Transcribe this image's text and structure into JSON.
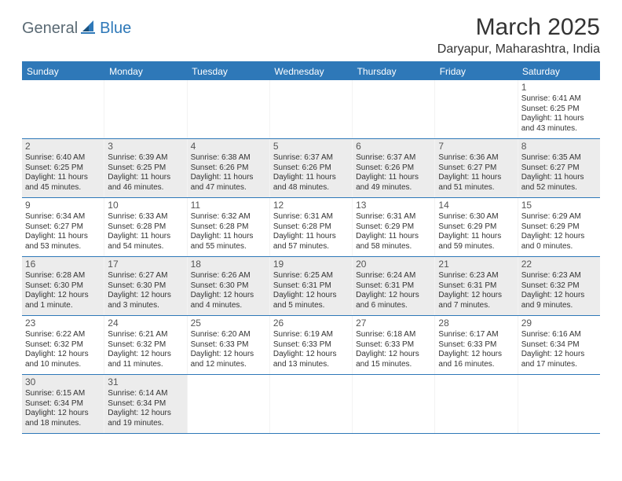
{
  "logo": {
    "text1": "General",
    "text2": "Blue"
  },
  "title": "March 2025",
  "location": "Daryapur, Maharashtra, India",
  "day_headers": [
    "Sunday",
    "Monday",
    "Tuesday",
    "Wednesday",
    "Thursday",
    "Friday",
    "Saturday"
  ],
  "colors": {
    "brand": "#2e78b8",
    "shade": "#ececec",
    "text": "#333333"
  },
  "weeks": [
    [
      {
        "day": "",
        "sunrise": "",
        "sunset": "",
        "daylight": ""
      },
      {
        "day": "",
        "sunrise": "",
        "sunset": "",
        "daylight": ""
      },
      {
        "day": "",
        "sunrise": "",
        "sunset": "",
        "daylight": ""
      },
      {
        "day": "",
        "sunrise": "",
        "sunset": "",
        "daylight": ""
      },
      {
        "day": "",
        "sunrise": "",
        "sunset": "",
        "daylight": ""
      },
      {
        "day": "",
        "sunrise": "",
        "sunset": "",
        "daylight": ""
      },
      {
        "day": "1",
        "sunrise": "Sunrise: 6:41 AM",
        "sunset": "Sunset: 6:25 PM",
        "daylight": "Daylight: 11 hours and 43 minutes."
      }
    ],
    [
      {
        "day": "2",
        "shade": true,
        "sunrise": "Sunrise: 6:40 AM",
        "sunset": "Sunset: 6:25 PM",
        "daylight": "Daylight: 11 hours and 45 minutes."
      },
      {
        "day": "3",
        "shade": true,
        "sunrise": "Sunrise: 6:39 AM",
        "sunset": "Sunset: 6:25 PM",
        "daylight": "Daylight: 11 hours and 46 minutes."
      },
      {
        "day": "4",
        "shade": true,
        "sunrise": "Sunrise: 6:38 AM",
        "sunset": "Sunset: 6:26 PM",
        "daylight": "Daylight: 11 hours and 47 minutes."
      },
      {
        "day": "5",
        "shade": true,
        "sunrise": "Sunrise: 6:37 AM",
        "sunset": "Sunset: 6:26 PM",
        "daylight": "Daylight: 11 hours and 48 minutes."
      },
      {
        "day": "6",
        "shade": true,
        "sunrise": "Sunrise: 6:37 AM",
        "sunset": "Sunset: 6:26 PM",
        "daylight": "Daylight: 11 hours and 49 minutes."
      },
      {
        "day": "7",
        "shade": true,
        "sunrise": "Sunrise: 6:36 AM",
        "sunset": "Sunset: 6:27 PM",
        "daylight": "Daylight: 11 hours and 51 minutes."
      },
      {
        "day": "8",
        "shade": true,
        "sunrise": "Sunrise: 6:35 AM",
        "sunset": "Sunset: 6:27 PM",
        "daylight": "Daylight: 11 hours and 52 minutes."
      }
    ],
    [
      {
        "day": "9",
        "sunrise": "Sunrise: 6:34 AM",
        "sunset": "Sunset: 6:27 PM",
        "daylight": "Daylight: 11 hours and 53 minutes."
      },
      {
        "day": "10",
        "sunrise": "Sunrise: 6:33 AM",
        "sunset": "Sunset: 6:28 PM",
        "daylight": "Daylight: 11 hours and 54 minutes."
      },
      {
        "day": "11",
        "sunrise": "Sunrise: 6:32 AM",
        "sunset": "Sunset: 6:28 PM",
        "daylight": "Daylight: 11 hours and 55 minutes."
      },
      {
        "day": "12",
        "sunrise": "Sunrise: 6:31 AM",
        "sunset": "Sunset: 6:28 PM",
        "daylight": "Daylight: 11 hours and 57 minutes."
      },
      {
        "day": "13",
        "sunrise": "Sunrise: 6:31 AM",
        "sunset": "Sunset: 6:29 PM",
        "daylight": "Daylight: 11 hours and 58 minutes."
      },
      {
        "day": "14",
        "sunrise": "Sunrise: 6:30 AM",
        "sunset": "Sunset: 6:29 PM",
        "daylight": "Daylight: 11 hours and 59 minutes."
      },
      {
        "day": "15",
        "sunrise": "Sunrise: 6:29 AM",
        "sunset": "Sunset: 6:29 PM",
        "daylight": "Daylight: 12 hours and 0 minutes."
      }
    ],
    [
      {
        "day": "16",
        "shade": true,
        "sunrise": "Sunrise: 6:28 AM",
        "sunset": "Sunset: 6:30 PM",
        "daylight": "Daylight: 12 hours and 1 minute."
      },
      {
        "day": "17",
        "shade": true,
        "sunrise": "Sunrise: 6:27 AM",
        "sunset": "Sunset: 6:30 PM",
        "daylight": "Daylight: 12 hours and 3 minutes."
      },
      {
        "day": "18",
        "shade": true,
        "sunrise": "Sunrise: 6:26 AM",
        "sunset": "Sunset: 6:30 PM",
        "daylight": "Daylight: 12 hours and 4 minutes."
      },
      {
        "day": "19",
        "shade": true,
        "sunrise": "Sunrise: 6:25 AM",
        "sunset": "Sunset: 6:31 PM",
        "daylight": "Daylight: 12 hours and 5 minutes."
      },
      {
        "day": "20",
        "shade": true,
        "sunrise": "Sunrise: 6:24 AM",
        "sunset": "Sunset: 6:31 PM",
        "daylight": "Daylight: 12 hours and 6 minutes."
      },
      {
        "day": "21",
        "shade": true,
        "sunrise": "Sunrise: 6:23 AM",
        "sunset": "Sunset: 6:31 PM",
        "daylight": "Daylight: 12 hours and 7 minutes."
      },
      {
        "day": "22",
        "shade": true,
        "sunrise": "Sunrise: 6:23 AM",
        "sunset": "Sunset: 6:32 PM",
        "daylight": "Daylight: 12 hours and 9 minutes."
      }
    ],
    [
      {
        "day": "23",
        "sunrise": "Sunrise: 6:22 AM",
        "sunset": "Sunset: 6:32 PM",
        "daylight": "Daylight: 12 hours and 10 minutes."
      },
      {
        "day": "24",
        "sunrise": "Sunrise: 6:21 AM",
        "sunset": "Sunset: 6:32 PM",
        "daylight": "Daylight: 12 hours and 11 minutes."
      },
      {
        "day": "25",
        "sunrise": "Sunrise: 6:20 AM",
        "sunset": "Sunset: 6:33 PM",
        "daylight": "Daylight: 12 hours and 12 minutes."
      },
      {
        "day": "26",
        "sunrise": "Sunrise: 6:19 AM",
        "sunset": "Sunset: 6:33 PM",
        "daylight": "Daylight: 12 hours and 13 minutes."
      },
      {
        "day": "27",
        "sunrise": "Sunrise: 6:18 AM",
        "sunset": "Sunset: 6:33 PM",
        "daylight": "Daylight: 12 hours and 15 minutes."
      },
      {
        "day": "28",
        "sunrise": "Sunrise: 6:17 AM",
        "sunset": "Sunset: 6:33 PM",
        "daylight": "Daylight: 12 hours and 16 minutes."
      },
      {
        "day": "29",
        "sunrise": "Sunrise: 6:16 AM",
        "sunset": "Sunset: 6:34 PM",
        "daylight": "Daylight: 12 hours and 17 minutes."
      }
    ],
    [
      {
        "day": "30",
        "shade": true,
        "sunrise": "Sunrise: 6:15 AM",
        "sunset": "Sunset: 6:34 PM",
        "daylight": "Daylight: 12 hours and 18 minutes."
      },
      {
        "day": "31",
        "shade": true,
        "sunrise": "Sunrise: 6:14 AM",
        "sunset": "Sunset: 6:34 PM",
        "daylight": "Daylight: 12 hours and 19 minutes."
      },
      {
        "day": "",
        "sunrise": "",
        "sunset": "",
        "daylight": ""
      },
      {
        "day": "",
        "sunrise": "",
        "sunset": "",
        "daylight": ""
      },
      {
        "day": "",
        "sunrise": "",
        "sunset": "",
        "daylight": ""
      },
      {
        "day": "",
        "sunrise": "",
        "sunset": "",
        "daylight": ""
      },
      {
        "day": "",
        "sunrise": "",
        "sunset": "",
        "daylight": ""
      }
    ]
  ]
}
